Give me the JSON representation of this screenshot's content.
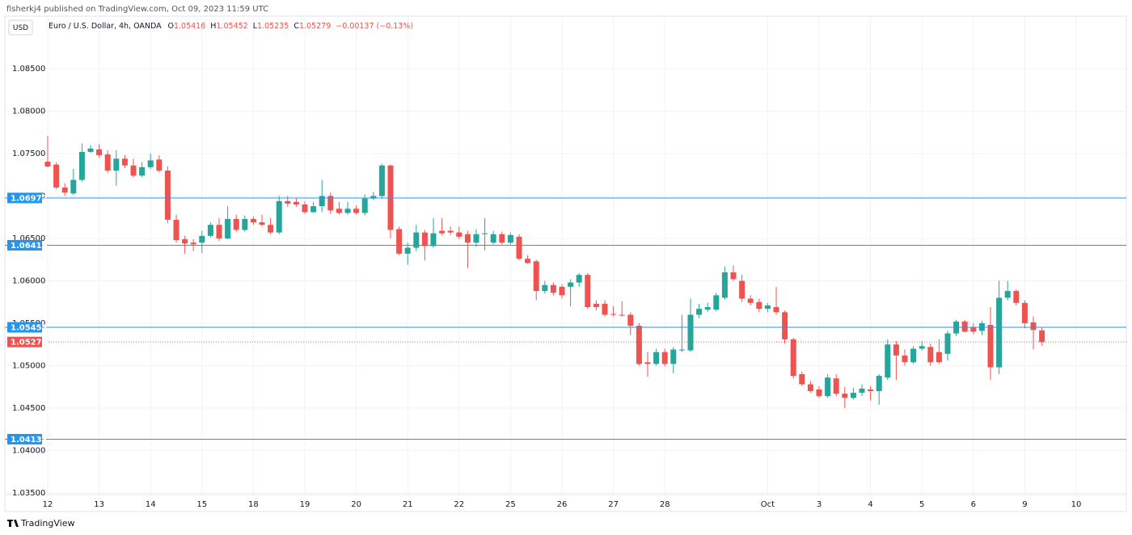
{
  "header": "fisherkj4 published on TradingView.com, Oct 09, 2023 11:59 UTC",
  "currency": "USD",
  "footer": "TradingView",
  "legend": {
    "symbol": "Euro / U.S. Dollar, 4h, OANDA",
    "items": [
      {
        "label": "O",
        "value": 1.05416
      },
      {
        "label": "H",
        "value": 1.05452
      },
      {
        "label": "L",
        "value": 1.05235
      },
      {
        "label": "C",
        "value": 1.05279
      }
    ],
    "change": {
      "value": -0.00137,
      "label": "−0.00137 (−0.13%)"
    }
  },
  "chart_data": {
    "type": "candlestick",
    "up_color": "#26a69a",
    "down_color": "#ef5350",
    "grid": true,
    "ylim": [
      1.0348,
      1.0912
    ],
    "yticks": [
      {
        "value": 1.035,
        "label": "1.03500"
      },
      {
        "value": 1.04,
        "label": "1.04000"
      },
      {
        "value": 1.045,
        "label": "1.04500"
      },
      {
        "value": 1.05,
        "label": "1.05000"
      },
      {
        "value": 1.055,
        "label": "1.05500"
      },
      {
        "value": 1.06,
        "label": "1.06000"
      },
      {
        "value": 1.065,
        "label": "1.06500"
      },
      {
        "value": 1.07,
        "label": "1.07000"
      },
      {
        "value": 1.075,
        "label": "1.07500"
      },
      {
        "value": 1.08,
        "label": "1.08000"
      },
      {
        "value": 1.085,
        "label": "1.08500"
      }
    ],
    "levels": {
      "color": "#2196f3",
      "values": [
        1.06977,
        1.06419,
        1.05452,
        1.04133
      ]
    },
    "price_line": {
      "color": "#ef5350",
      "value": 1.05279
    },
    "categories": [
      "12",
      null,
      null,
      null,
      null,
      null,
      "13",
      null,
      null,
      null,
      null,
      null,
      "14",
      null,
      null,
      null,
      null,
      null,
      "15",
      null,
      null,
      null,
      null,
      null,
      "18",
      null,
      null,
      null,
      null,
      null,
      "19",
      null,
      null,
      null,
      null,
      null,
      "20",
      null,
      null,
      null,
      null,
      null,
      "21",
      null,
      null,
      null,
      null,
      null,
      "22",
      null,
      null,
      null,
      null,
      null,
      "25",
      null,
      null,
      null,
      null,
      null,
      "26",
      null,
      null,
      null,
      null,
      null,
      "27",
      null,
      null,
      null,
      null,
      null,
      "28",
      null,
      null,
      null,
      null,
      null,
      null,
      null,
      null,
      null,
      null,
      null,
      "Oct",
      null,
      null,
      null,
      null,
      null,
      "3",
      null,
      null,
      null,
      null,
      null,
      "4",
      null,
      null,
      null,
      null,
      null,
      "5",
      null,
      null,
      null,
      null,
      null,
      "6",
      null,
      null,
      null,
      null,
      null,
      "9",
      null,
      null,
      null,
      null,
      null,
      "10"
    ],
    "open": [
      1.07405,
      1.0737,
      1.071,
      1.0703,
      1.0719,
      1.0752,
      1.0755,
      1.0749,
      1.073,
      1.0744,
      1.0736,
      1.0724,
      1.0734,
      1.0743,
      1.073,
      1.0672,
      1.0649,
      1.0645,
      1.0645,
      1.0653,
      1.0666,
      1.065,
      1.0673,
      1.066,
      1.0673,
      1.0669,
      1.0666,
      1.0657,
      1.0694,
      1.0693,
      1.069,
      1.0681,
      1.0688,
      1.07,
      1.0685,
      1.068,
      1.0685,
      1.068,
      1.0697,
      1.07,
      1.0736,
      1.0661,
      1.0632,
      1.0639,
      1.0657,
      1.0641,
      1.0659,
      1.0659,
      1.0657,
      1.0655,
      1.0645,
      1.0655,
      1.0645,
      1.0655,
      1.0645,
      1.0652,
      1.0626,
      1.0623,
      1.0588,
      1.0595,
      1.0593,
      1.0593,
      1.0598,
      1.0607,
      1.0573,
      1.0573,
      1.0561,
      1.056,
      1.056,
      1.0547,
      1.0504,
      1.0502,
      1.0516,
      1.0502,
      1.0518,
      1.0518,
      1.056,
      1.0566,
      1.0566,
      1.058,
      1.061,
      1.06,
      1.0579,
      1.0575,
      1.0567,
      1.0569,
      1.0563,
      1.0531,
      1.049,
      1.0478,
      1.0472,
      1.0464,
      1.0485,
      1.0467,
      1.0462,
      1.0468,
      1.0472,
      1.047,
      1.0486,
      1.0525,
      1.0512,
      1.0504,
      1.052,
      1.0522,
      1.0516,
      1.0514,
      1.0538,
      1.0552,
      1.0545,
      1.0541,
      1.0548,
      1.0498,
      1.058,
      1.0588,
      1.0574,
      1.0551,
      1.05416,
      null,
      null,
      null,
      null
    ],
    "high": [
      1.0771,
      1.074,
      1.0715,
      1.0732,
      1.0762,
      1.076,
      1.0761,
      1.0754,
      1.0754,
      1.0748,
      1.0744,
      1.074,
      1.075,
      1.0748,
      1.0735,
      1.0678,
      1.0653,
      1.0649,
      1.0659,
      1.0669,
      1.0674,
      1.0688,
      1.0678,
      1.0677,
      1.0676,
      1.0678,
      1.0674,
      1.07,
      1.07,
      1.0698,
      1.0694,
      1.0693,
      1.0719,
      1.0704,
      1.0693,
      1.0693,
      1.0689,
      1.0702,
      1.0705,
      1.0738,
      1.0737,
      1.0664,
      1.0645,
      1.0666,
      1.066,
      1.0674,
      1.0674,
      1.0664,
      1.0664,
      1.0659,
      1.0661,
      1.0674,
      1.0659,
      1.0658,
      1.0657,
      1.0655,
      1.063,
      1.0625,
      1.06,
      1.0598,
      1.0596,
      1.0602,
      1.0609,
      1.0609,
      1.0577,
      1.0577,
      1.057,
      1.0576,
      1.0563,
      1.055,
      1.0516,
      1.052,
      1.052,
      1.0522,
      1.056,
      1.0579,
      1.0573,
      1.0574,
      1.0586,
      1.0617,
      1.0618,
      1.0607,
      1.0583,
      1.0579,
      1.0574,
      1.0593,
      1.0565,
      1.0533,
      1.0493,
      1.0482,
      1.0476,
      1.049,
      1.049,
      1.0475,
      1.0474,
      1.0478,
      1.0476,
      1.049,
      1.0531,
      1.0529,
      1.0519,
      1.0523,
      1.0529,
      1.0526,
      1.0531,
      1.0541,
      1.0554,
      1.0554,
      1.055,
      1.0553,
      1.0569,
      1.06,
      1.06,
      1.059,
      1.0577,
      1.0558,
      1.05452,
      null,
      null,
      null,
      null
    ],
    "low": [
      1.0734,
      1.0708,
      1.07,
      1.0701,
      1.0717,
      1.0751,
      1.0745,
      1.0727,
      1.0712,
      1.0733,
      1.0722,
      1.0722,
      1.0732,
      1.0728,
      1.0668,
      1.0645,
      1.0632,
      1.0635,
      1.0633,
      1.0651,
      1.0647,
      1.0649,
      1.0658,
      1.0658,
      1.0666,
      1.0664,
      1.0655,
      1.0655,
      1.0687,
      1.0687,
      1.0679,
      1.068,
      1.0681,
      1.0679,
      1.0678,
      1.0678,
      1.0678,
      1.0677,
      1.0695,
      1.0697,
      1.065,
      1.063,
      1.0619,
      1.0635,
      1.0624,
      1.0639,
      1.0654,
      1.0654,
      1.0649,
      1.0615,
      1.064,
      1.0636,
      1.0643,
      1.0643,
      1.0643,
      1.0624,
      1.062,
      1.0577,
      1.0585,
      1.0583,
      1.0579,
      1.057,
      1.0593,
      1.0567,
      1.0565,
      1.0558,
      1.0558,
      1.0558,
      1.0536,
      1.05,
      1.0487,
      1.05,
      1.0499,
      1.0491,
      1.0516,
      1.0516,
      1.0556,
      1.0563,
      1.0564,
      1.0578,
      1.06,
      1.0575,
      1.0571,
      1.0563,
      1.0563,
      1.056,
      1.0526,
      1.0485,
      1.0476,
      1.0468,
      1.0462,
      1.0462,
      1.0464,
      1.045,
      1.046,
      1.0464,
      1.0459,
      1.0454,
      1.0483,
      1.0483,
      1.05,
      1.0502,
      1.0518,
      1.05,
      1.0502,
      1.0506,
      1.0535,
      1.0539,
      1.0537,
      1.0536,
      1.0483,
      1.049,
      1.0577,
      1.0571,
      1.0544,
      1.0519,
      1.05235,
      null,
      null,
      null,
      null
    ],
    "close": [
      1.07348,
      1.071,
      1.0704,
      1.0719,
      1.0752,
      1.0756,
      1.0748,
      1.073,
      1.0744,
      1.0736,
      1.0724,
      1.0734,
      1.0742,
      1.073,
      1.0672,
      1.0648,
      1.0644,
      1.0643,
      1.0653,
      1.0666,
      1.065,
      1.0673,
      1.066,
      1.0673,
      1.0669,
      1.0666,
      1.0657,
      1.0694,
      1.0691,
      1.069,
      1.0681,
      1.0688,
      1.07,
      1.0683,
      1.068,
      1.0685,
      1.068,
      1.0697,
      1.07,
      1.0736,
      1.066,
      1.0632,
      1.0639,
      1.0657,
      1.0641,
      1.0656,
      1.0656,
      1.0657,
      1.0652,
      1.0645,
      1.0655,
      1.0656,
      1.0655,
      1.0645,
      1.0654,
      1.0626,
      1.0621,
      1.0588,
      1.0595,
      1.0586,
      1.0583,
      1.0598,
      1.0607,
      1.0569,
      1.0569,
      1.056,
      1.056,
      1.0559,
      1.0547,
      1.0502,
      1.0502,
      1.0516,
      1.0502,
      1.0519,
      1.0519,
      1.056,
      1.0567,
      1.0569,
      1.0583,
      1.061,
      1.0602,
      1.0579,
      1.0574,
      1.0567,
      1.0571,
      1.0563,
      1.0531,
      1.0488,
      1.0478,
      1.047,
      1.0464,
      1.0486,
      1.0467,
      1.0462,
      1.0468,
      1.0473,
      1.047,
      1.0488,
      1.0525,
      1.0512,
      1.0504,
      1.052,
      1.0523,
      1.0504,
      1.0504,
      1.0538,
      1.0552,
      1.054,
      1.054,
      1.055,
      1.0498,
      1.058,
      1.0588,
      1.0574,
      1.055,
      1.0542,
      1.05279,
      null,
      null,
      null,
      null
    ]
  }
}
